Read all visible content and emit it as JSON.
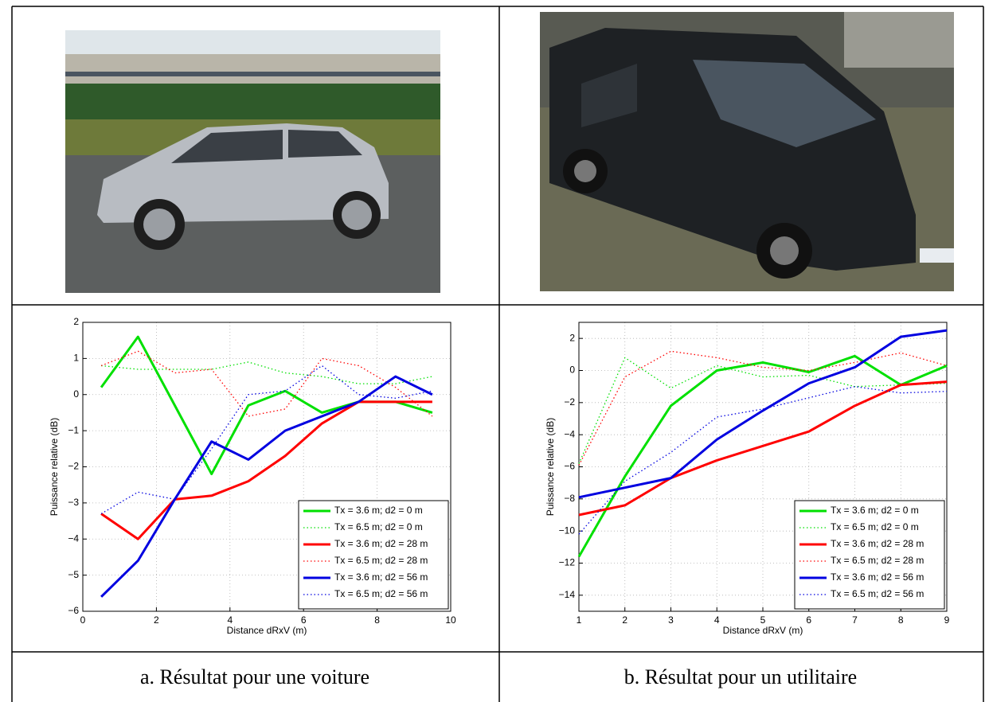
{
  "chart_data": [
    {
      "type": "line",
      "xlabel": "Distance dRxV (m)",
      "ylabel": "Puissance relative (dB)",
      "x": [
        0.5,
        1.5,
        2.5,
        3.5,
        4.5,
        5.5,
        6.5,
        7.5,
        8.5,
        9.5
      ],
      "xlim": [
        0,
        10
      ],
      "xticks": [
        0,
        2,
        4,
        6,
        8,
        10
      ],
      "ylim": [
        -6,
        2
      ],
      "yticks": [
        {
          "value": -6,
          "label": "−6"
        },
        {
          "value": -5,
          "label": "−5"
        },
        {
          "value": -4,
          "label": "−4"
        },
        {
          "value": -3,
          "label": "−3"
        },
        {
          "value": -2,
          "label": "−2"
        },
        {
          "value": -1,
          "label": "−1"
        },
        0,
        1,
        2
      ],
      "grid": true,
      "legend": "lower right",
      "series": [
        {
          "name": "Tx = 3.6 m; d2 = 0 m",
          "color": "#00e000",
          "line_style": "solid",
          "values": [
            0.2,
            1.6,
            -0.3,
            -2.2,
            -0.3,
            0.1,
            -0.5,
            -0.2,
            -0.2,
            -0.5
          ]
        },
        {
          "name": "Tx = 6.5 m; d2 = 0 m",
          "color": "#00e000",
          "line_style": "dotted",
          "values": [
            0.8,
            0.7,
            0.7,
            0.7,
            0.9,
            0.6,
            0.5,
            0.3,
            0.3,
            0.5
          ]
        },
        {
          "name": "Tx = 3.6 m; d2 = 28 m",
          "color": "#ff0000",
          "line_style": "solid",
          "values": [
            -3.3,
            -4.0,
            -2.9,
            -2.8,
            -2.4,
            -1.7,
            -0.8,
            -0.2,
            -0.2,
            -0.2
          ]
        },
        {
          "name": "Tx = 6.5 m; d2 = 28 m",
          "color": "#ff0000",
          "line_style": "dotted",
          "values": [
            0.8,
            1.2,
            0.6,
            0.7,
            -0.6,
            -0.4,
            1.0,
            0.8,
            0.2,
            -0.6
          ]
        },
        {
          "name": "Tx = 3.6 m; d2 = 56 m",
          "color": "#0000e0",
          "line_style": "solid",
          "values": [
            -5.6,
            -4.6,
            -2.9,
            -1.3,
            -1.8,
            -1.0,
            -0.6,
            -0.2,
            0.5,
            0.0
          ]
        },
        {
          "name": "Tx = 6.5 m; d2 = 56 m",
          "color": "#0000e0",
          "line_style": "dotted",
          "values": [
            -3.3,
            -2.7,
            -2.9,
            -1.5,
            0.0,
            0.1,
            0.8,
            0.0,
            -0.1,
            0.1
          ]
        }
      ]
    },
    {
      "type": "line",
      "xlabel": "Distance dRxV (m)",
      "ylabel": "Puissance relative (dB)",
      "x": [
        1,
        2,
        3,
        4,
        5,
        6,
        7,
        8,
        9
      ],
      "xlim": [
        1,
        9
      ],
      "xticks": [
        1,
        2,
        3,
        4,
        5,
        6,
        7,
        8,
        9
      ],
      "ylim": [
        -15,
        3
      ],
      "yticks": [
        {
          "value": -14,
          "label": "−14"
        },
        {
          "value": -12,
          "label": "−12"
        },
        {
          "value": -10,
          "label": "−10"
        },
        {
          "value": -8,
          "label": "−8"
        },
        {
          "value": -6,
          "label": "−6"
        },
        {
          "value": -4,
          "label": "−4"
        },
        {
          "value": -2,
          "label": "−2"
        },
        0,
        2
      ],
      "grid": true,
      "legend": "lower right",
      "series": [
        {
          "name": "Tx = 3.6 m; d2 = 0 m",
          "color": "#00e000",
          "line_style": "solid",
          "values": [
            -11.6,
            -6.6,
            -2.2,
            0.0,
            0.5,
            -0.1,
            0.9,
            -0.9,
            0.3
          ]
        },
        {
          "name": "Tx = 6.5 m; d2 = 0 m",
          "color": "#00e000",
          "line_style": "dotted",
          "values": [
            -5.8,
            0.8,
            -1.1,
            0.3,
            -0.4,
            -0.3,
            -1.0,
            -0.9,
            -0.8
          ]
        },
        {
          "name": "Tx = 3.6 m; d2 = 28 m",
          "color": "#ff0000",
          "line_style": "solid",
          "values": [
            -9.0,
            -8.4,
            -6.7,
            -5.6,
            -4.7,
            -3.8,
            -2.2,
            -0.9,
            -0.7
          ]
        },
        {
          "name": "Tx = 6.5 m; d2 = 28 m",
          "color": "#ff0000",
          "line_style": "dotted",
          "values": [
            -5.9,
            -0.4,
            1.2,
            0.8,
            0.2,
            0.0,
            0.5,
            1.1,
            0.3
          ]
        },
        {
          "name": "Tx = 3.6 m; d2 = 56 m",
          "color": "#0000e0",
          "line_style": "solid",
          "values": [
            -7.9,
            -7.3,
            -6.7,
            -4.3,
            -2.5,
            -0.8,
            0.2,
            2.1,
            2.5
          ]
        },
        {
          "name": "Tx = 6.5 m; d2 = 56 m",
          "color": "#0000e0",
          "line_style": "dotted",
          "values": [
            -10.2,
            -6.9,
            -5.1,
            -2.9,
            -2.4,
            -1.7,
            -1.0,
            -1.4,
            -1.3
          ]
        }
      ]
    }
  ],
  "captions": [
    "a.   Résultat pour une voiture",
    "b.   Résultat pour un utilitaire"
  ]
}
